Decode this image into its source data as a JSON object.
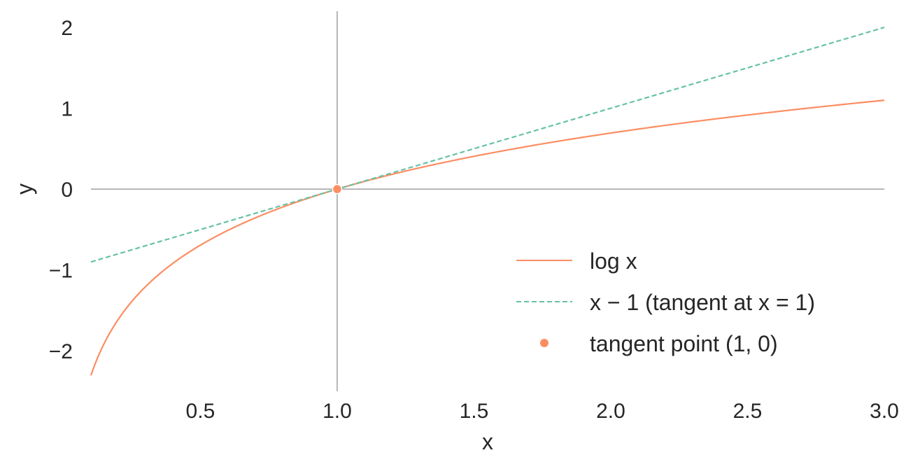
{
  "chart_data": {
    "type": "line",
    "title": "",
    "xlabel": "x",
    "ylabel": "y",
    "xlim": [
      0.1,
      3.0
    ],
    "ylim": [
      -2.5,
      2.2
    ],
    "grid": false,
    "legend_position": "lower-right",
    "x_ticks": [
      {
        "value": 0.5,
        "label": "0.5"
      },
      {
        "value": 1.0,
        "label": "1.0"
      },
      {
        "value": 1.5,
        "label": "1.5"
      },
      {
        "value": 2.0,
        "label": "2.0"
      },
      {
        "value": 2.5,
        "label": "2.5"
      },
      {
        "value": 3.0,
        "label": "3.0"
      }
    ],
    "y_ticks": [
      {
        "value": -2,
        "label": "−2"
      },
      {
        "value": -1,
        "label": "−1"
      },
      {
        "value": 0,
        "label": "0"
      },
      {
        "value": 1,
        "label": "1"
      },
      {
        "value": 2,
        "label": "2"
      }
    ],
    "reference_lines": {
      "horizontal_y": 0,
      "vertical_x": 1,
      "color": "#a6a6a6"
    },
    "series": [
      {
        "name": "log x",
        "kind": "line",
        "style": "solid",
        "color": "#fc8d62",
        "x": [
          0.1,
          0.15,
          0.2,
          0.25,
          0.3,
          0.4,
          0.5,
          0.6,
          0.7,
          0.8,
          0.9,
          1.0,
          1.2,
          1.4,
          1.6,
          1.8,
          2.0,
          2.2,
          2.4,
          2.6,
          2.8,
          3.0
        ],
        "y": [
          -2.303,
          -1.897,
          -1.609,
          -1.386,
          -1.204,
          -0.916,
          -0.693,
          -0.511,
          -0.357,
          -0.223,
          -0.105,
          0.0,
          0.182,
          0.336,
          0.47,
          0.588,
          0.693,
          0.788,
          0.875,
          0.956,
          1.03,
          1.099
        ]
      },
      {
        "name": "x − 1 (tangent at x = 1)",
        "kind": "line",
        "style": "dashed",
        "color": "#66c2a5",
        "x": [
          0.1,
          3.0
        ],
        "y": [
          -0.9,
          2.0
        ]
      },
      {
        "name": "tangent point (1, 0)",
        "kind": "scatter",
        "color": "#fc8d62",
        "x": [
          1.0
        ],
        "y": [
          0.0
        ]
      }
    ]
  }
}
